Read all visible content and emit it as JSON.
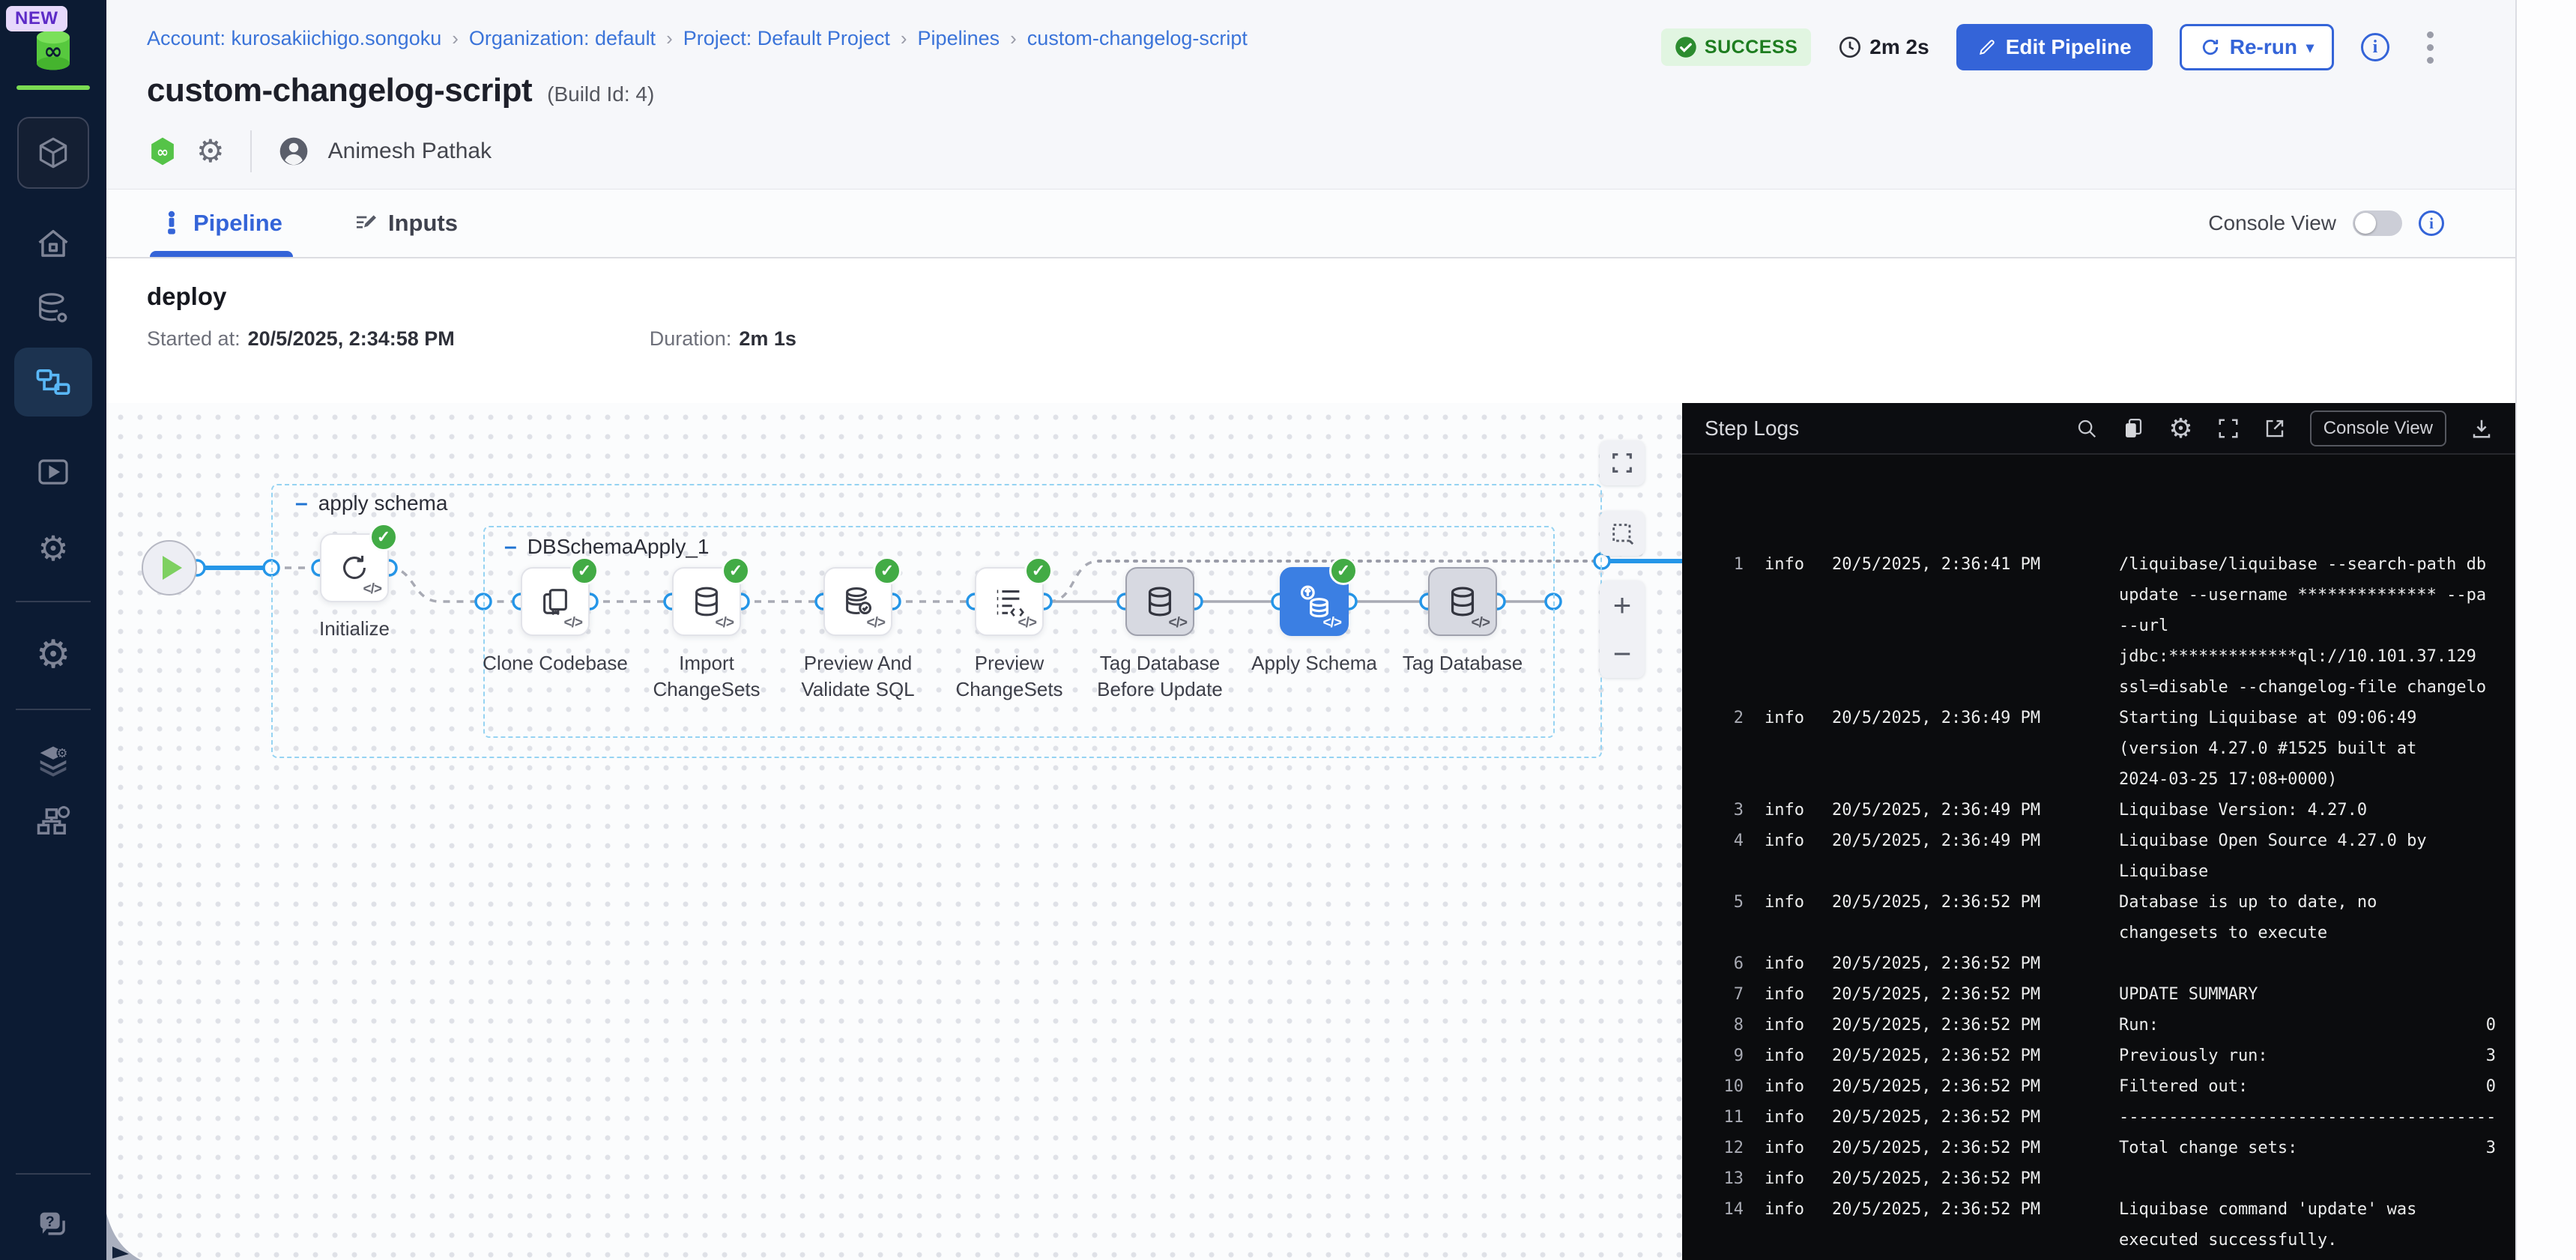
{
  "sidebar": {
    "new_badge": "NEW"
  },
  "breadcrumb": {
    "items": [
      "Account: kurosakiichigo.songoku",
      "Organization: default",
      "Project: Default Project",
      "Pipelines",
      "custom-changelog-script"
    ]
  },
  "header": {
    "title": "custom-changelog-script",
    "build_id": "(Build Id: 4)",
    "author": "Animesh Pathak",
    "status_badge": "SUCCESS",
    "elapsed": "2m 2s",
    "edit_pipeline_label": "Edit Pipeline",
    "rerun_label": "Re-run"
  },
  "tabs": {
    "pipeline_label": "Pipeline",
    "inputs_label": "Inputs",
    "console_view_label": "Console View"
  },
  "stage": {
    "name": "deploy",
    "started_label": "Started at:",
    "started_value": "20/5/2025, 2:34:58 PM",
    "duration_label": "Duration:",
    "duration_value": "2m 1s"
  },
  "graph": {
    "groups": [
      {
        "label": "apply schema"
      },
      {
        "label": "DBSchemaApply_1"
      }
    ],
    "nodes": [
      {
        "label": "Initialize",
        "state": "success"
      },
      {
        "label": "Clone Codebase",
        "state": "success"
      },
      {
        "label": "Import ChangeSets",
        "state": "success"
      },
      {
        "label": "Preview And Validate SQL",
        "state": "success"
      },
      {
        "label": "Preview ChangeSets",
        "state": "success"
      },
      {
        "label": "Tag Database Before Update",
        "state": "skipped"
      },
      {
        "label": "Apply Schema",
        "state": "selected-success"
      },
      {
        "label": "Tag Database",
        "state": "skipped"
      }
    ],
    "code_glyph": "</>"
  },
  "logs": {
    "title": "Step Logs",
    "console_view_label": "Console View",
    "entries": [
      {
        "n": "1",
        "level": "info",
        "time": "20/5/2025, 2:36:41 PM",
        "lines": [
          "/liquibase/liquibase --search-path db",
          "update --username ************** --pa",
          "--url",
          "jdbc:*************ql://10.101.37.129",
          "ssl=disable --changelog-file changelo"
        ]
      },
      {
        "n": "2",
        "level": "info",
        "time": "20/5/2025, 2:36:49 PM",
        "lines": [
          "Starting Liquibase at 09:06:49",
          "(version 4.27.0 #1525 built at",
          "2024-03-25 17:08+0000)"
        ]
      },
      {
        "n": "3",
        "level": "info",
        "time": "20/5/2025, 2:36:49 PM",
        "lines": [
          "Liquibase Version: 4.27.0"
        ]
      },
      {
        "n": "4",
        "level": "info",
        "time": "20/5/2025, 2:36:49 PM",
        "lines": [
          "Liquibase Open Source 4.27.0 by",
          "Liquibase"
        ]
      },
      {
        "n": "5",
        "level": "info",
        "time": "20/5/2025, 2:36:52 PM",
        "lines": [
          "Database is up to date, no",
          "changesets to execute"
        ]
      },
      {
        "n": "6",
        "level": "info",
        "time": "20/5/2025, 2:36:52 PM",
        "lines": [
          ""
        ]
      },
      {
        "n": "7",
        "level": "info",
        "time": "20/5/2025, 2:36:52 PM",
        "lines": [
          "UPDATE SUMMARY"
        ]
      },
      {
        "n": "8",
        "level": "info",
        "time": "20/5/2025, 2:36:52 PM",
        "lines": [
          "Run:"
        ],
        "value": "0"
      },
      {
        "n": "9",
        "level": "info",
        "time": "20/5/2025, 2:36:52 PM",
        "lines": [
          "Previously run:"
        ],
        "value": "3"
      },
      {
        "n": "10",
        "level": "info",
        "time": "20/5/2025, 2:36:52 PM",
        "lines": [
          "Filtered out:"
        ],
        "value": "0"
      },
      {
        "n": "11",
        "level": "info",
        "time": "20/5/2025, 2:36:52 PM",
        "lines": [
          "--------------------------------------"
        ]
      },
      {
        "n": "12",
        "level": "info",
        "time": "20/5/2025, 2:36:52 PM",
        "lines": [
          "Total change sets:"
        ],
        "value": "3"
      },
      {
        "n": "13",
        "level": "info",
        "time": "20/5/2025, 2:36:52 PM",
        "lines": [
          ""
        ]
      },
      {
        "n": "14",
        "level": "info",
        "time": "20/5/2025, 2:36:52 PM",
        "lines": [
          "Liquibase command 'update' was",
          "executed successfully."
        ]
      }
    ]
  },
  "colors": {
    "primary_blue": "#3464d8",
    "link_blue": "#3b74d9",
    "success_green": "#42ab45",
    "selected_node_blue": "#3b7fe3",
    "connector_blue": "#2596e8",
    "sidebar_bg": "#0c1b33",
    "log_bg": "#0b0c0e"
  }
}
